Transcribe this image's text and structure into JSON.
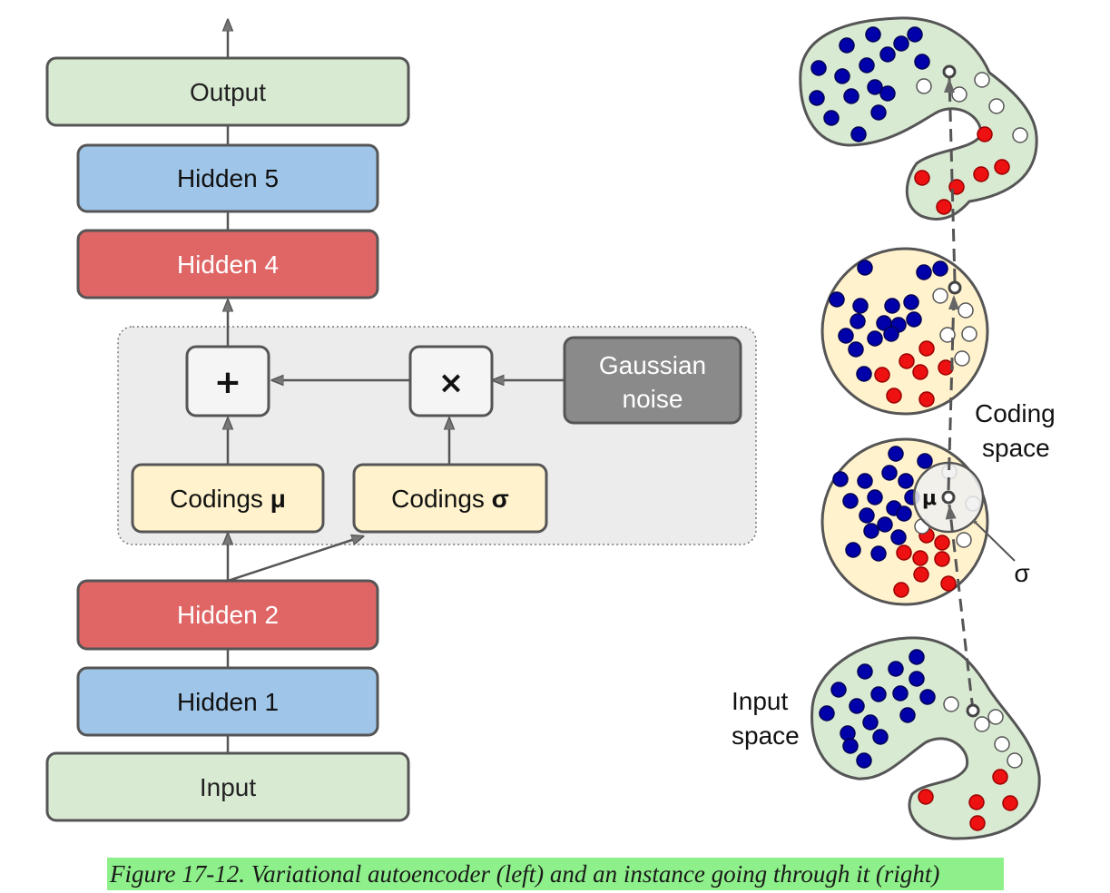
{
  "left_diagram": {
    "output": "Output",
    "hidden5": "Hidden 5",
    "hidden4": "Hidden 4",
    "plus": "+",
    "times": "×",
    "gaussian_line1": "Gaussian",
    "gaussian_line2": "noise",
    "codings_mu_prefix": "Codings ",
    "codings_mu_symbol": "μ",
    "codings_sigma_prefix": "Codings ",
    "codings_sigma_symbol": "σ",
    "hidden2": "Hidden 2",
    "hidden1": "Hidden 1",
    "input": "Input"
  },
  "right_diagram": {
    "coding_line1": "Coding",
    "coding_line2": "space",
    "input_line1": "Input",
    "input_line2": "space",
    "mu": "μ",
    "sigma": "σ"
  },
  "colors": {
    "green_layer": "#d9ead3",
    "blue_layer": "#9fc5e8",
    "red_layer": "#e06666",
    "yellow_layer": "#fff2cc",
    "gray_noise": "#8a8a8a",
    "blue_dot": "#0000aa",
    "red_dot": "#ee1111",
    "caption_bg": "#8ef08a"
  },
  "caption": "Figure 17-12. Variational autoencoder (left) and an instance going through it (right)"
}
